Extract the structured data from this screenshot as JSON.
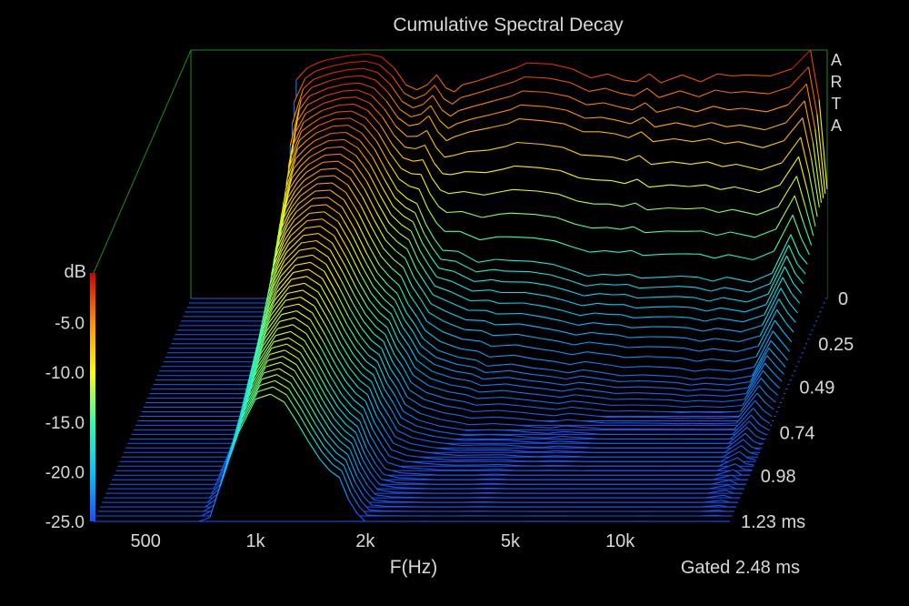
{
  "chart_data": {
    "type": "waterfall",
    "title": "Cumulative Spectral Decay",
    "xlabel": "F(Hz)",
    "x_scale": "log",
    "x_ticks": [
      {
        "value": 500,
        "label": "500"
      },
      {
        "value": 1000,
        "label": "1k"
      },
      {
        "value": 2000,
        "label": "2k"
      },
      {
        "value": 5000,
        "label": "5k"
      },
      {
        "value": 10000,
        "label": "10k"
      }
    ],
    "xlim": [
      360,
      20000
    ],
    "ylabel": "dB",
    "ylim": [
      -25,
      0
    ],
    "y_ticks": [
      {
        "value": -5,
        "label": "-5.0"
      },
      {
        "value": -10,
        "label": "-10.0"
      },
      {
        "value": -15,
        "label": "-15.0"
      },
      {
        "value": -20,
        "label": "-20.0"
      },
      {
        "value": -25,
        "label": "-25.0"
      }
    ],
    "time_ticks": [
      {
        "value": 0,
        "label": "0"
      },
      {
        "value": 0.25,
        "label": "0.25"
      },
      {
        "value": 0.49,
        "label": "0.49"
      },
      {
        "value": 0.74,
        "label": "0.74"
      },
      {
        "value": 0.98,
        "label": "0.98"
      },
      {
        "value": 1.23,
        "label": "1.23 ms"
      }
    ],
    "tlim": [
      0,
      1.23
    ],
    "gating_label": "Gated 2.48 ms",
    "brand_label": "ARTA",
    "colorbar": [
      "#1a4dff",
      "#00c8ff",
      "#30ffb0",
      "#ffff00",
      "#ff9000",
      "#d00000"
    ],
    "slice_times_ms": [
      0,
      0.025,
      0.05,
      0.075,
      0.1,
      0.125,
      0.15,
      0.175,
      0.2,
      0.225,
      0.25,
      0.275,
      0.3,
      0.325,
      0.35,
      0.375,
      0.4,
      0.425,
      0.45,
      0.475,
      0.5,
      0.525,
      0.55,
      0.575,
      0.6,
      0.625,
      0.65,
      0.675,
      0.7,
      0.725,
      0.75,
      0.775,
      0.8,
      0.825,
      0.85,
      0.875,
      0.9,
      0.925,
      0.95,
      0.975,
      1.0,
      1.025,
      1.05,
      1.075,
      1.1,
      1.125,
      1.15,
      1.175,
      1.2,
      1.23
    ],
    "frequencies_hz": [
      700,
      750,
      800,
      850,
      900,
      1000,
      1100,
      1200,
      1300,
      1400,
      1500,
      1600,
      1700,
      1800,
      1900,
      2000,
      2200,
      2500,
      2800,
      3000,
      3500,
      4000,
      4500,
      5000,
      5500,
      6000,
      6500,
      7000,
      8000,
      9000,
      10000,
      11000,
      12000,
      14000,
      16000,
      18000,
      19000,
      20000
    ],
    "series": [
      {
        "time_ms": 0,
        "values": [
          -3,
          -1.8,
          -1.3,
          -1.0,
          -0.8,
          -0.5,
          -0.4,
          -0.7,
          -1.8,
          -3.5,
          -4,
          -3.5,
          -2.5,
          -3.8,
          -4.2,
          -3.5,
          -3.1,
          -2.4,
          -1.8,
          -1.3,
          -1.4,
          -1.9,
          -2.8,
          -2.4,
          -3.0,
          -3.2,
          -2.4,
          -3.3,
          -2.5,
          -3.2,
          -2.4,
          -2.6,
          -2.5,
          -2.6,
          -1.9,
          0,
          -5,
          -14
        ]
      },
      {
        "time_ms": 0.1,
        "values": [
          -10,
          -4.2,
          -2.8,
          -2.4,
          -2.0,
          -1.6,
          -1.5,
          -2.0,
          -3.3,
          -5.0,
          -5.8,
          -5.6,
          -4.8,
          -6.4,
          -7.3,
          -6.9,
          -6.4,
          -6.0,
          -5.6,
          -5.1,
          -5.3,
          -5.6,
          -6.4,
          -6.4,
          -6.6,
          -7.0,
          -6.4,
          -7.4,
          -7.1,
          -7.4,
          -7.1,
          -7.6,
          -7.4,
          -8.0,
          -7.3,
          -5.0,
          -9,
          -14
        ]
      },
      {
        "time_ms": 0.25,
        "values": [
          -17,
          -8.4,
          -5.4,
          -4.5,
          -3.8,
          -3.1,
          -3.0,
          -3.8,
          -5.4,
          -7.6,
          -9.5,
          -10.4,
          -10.9,
          -13.0,
          -14.5,
          -15.6,
          -15.7,
          -16.8,
          -16.5,
          -16.6,
          -16.7,
          -17.0,
          -17.6,
          -18.2,
          -18.0,
          -18.1,
          -18.0,
          -18.4,
          -18.3,
          -18.2,
          -18.3,
          -18.7,
          -18.3,
          -18.8,
          -17.9,
          -14.0,
          -16,
          -17
        ]
      },
      {
        "time_ms": 0.49,
        "values": [
          -25,
          -15.5,
          -10.5,
          -8.3,
          -7.0,
          -5.7,
          -5.6,
          -6.6,
          -8.8,
          -11.2,
          -13.2,
          -14.4,
          -15.3,
          -17.2,
          -18.4,
          -19.8,
          -21.0,
          -21.7,
          -22.0,
          -22.6,
          -22.4,
          -22.8,
          -23.0,
          -23.3,
          -23.0,
          -23.2,
          -23.4,
          -23.6,
          -23.5,
          -23.6,
          -23.7,
          -24.0,
          -23.8,
          -24.0,
          -23.6,
          -20.0,
          -21,
          -22
        ]
      },
      {
        "time_ms": 0.74,
        "values": [
          -25,
          -20.8,
          -15.5,
          -12.6,
          -10.6,
          -8.6,
          -8.3,
          -9.2,
          -11.5,
          -13.8,
          -15.6,
          -16.9,
          -17.6,
          -19.7,
          -21.0,
          -22.6,
          -23.5,
          -24.1,
          -24.4,
          -24.6,
          -24.5,
          -24.6,
          -24.8,
          -24.9,
          -24.7,
          -24.8,
          -24.9,
          -25,
          -25,
          -25,
          -25,
          -25,
          -25,
          -25,
          -25,
          -23.0,
          -24,
          -24.5
        ]
      },
      {
        "time_ms": 0.98,
        "values": [
          -25,
          -23.4,
          -19.0,
          -16.0,
          -13.6,
          -11.0,
          -10.6,
          -11.5,
          -13.6,
          -15.8,
          -17.6,
          -18.8,
          -19.6,
          -21.8,
          -23.3,
          -24.4,
          -24.8,
          -24.9,
          -25,
          -25,
          -25,
          -24.9,
          -25,
          -25,
          -25,
          -25,
          -25,
          -25,
          -25,
          -25,
          -25,
          -25,
          -25,
          -25,
          -25,
          -24.5,
          -25,
          -25
        ]
      },
      {
        "time_ms": 1.23,
        "values": [
          -25,
          -24.6,
          -21.5,
          -18.6,
          -16.0,
          -12.7,
          -12.2,
          -13.0,
          -15.0,
          -17.0,
          -18.7,
          -19.9,
          -20.6,
          -22.8,
          -24.2,
          -25,
          -25,
          -25,
          -25,
          -25,
          -25,
          -25,
          -25,
          -25,
          -25,
          -25,
          -25,
          -25,
          -25,
          -25,
          -25,
          -25,
          -25,
          -25,
          -25,
          -25,
          -25,
          -25
        ]
      }
    ]
  }
}
